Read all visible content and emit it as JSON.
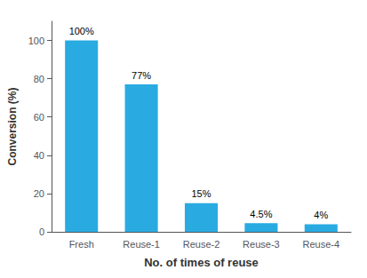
{
  "chart_data": {
    "type": "bar",
    "categories": [
      "Fresh",
      "Reuse-1",
      "Reuse-2",
      "Reuse-3",
      "Reuse-4"
    ],
    "values": [
      100,
      77,
      15,
      4.5,
      4
    ],
    "value_labels": [
      "100%",
      "77%",
      "15%",
      "4.5%",
      "4%"
    ],
    "data_labels": true,
    "color": "#29ABE2",
    "xlabel": "No. of times of reuse",
    "ylabel": "Conversion (%)",
    "ylim": [
      0,
      110
    ],
    "yticks": [
      0,
      20,
      40,
      60,
      80,
      100
    ],
    "grid": false
  }
}
